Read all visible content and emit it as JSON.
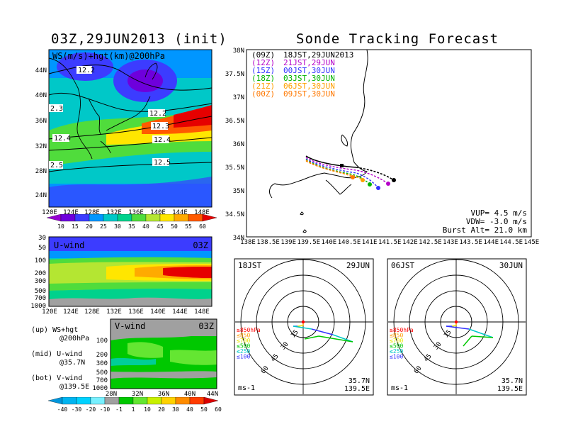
{
  "left": {
    "title": "03Z,29JUN2013 (init)",
    "map": {
      "label": "WS(m/s)+hgt(km)@200hPa",
      "lat_ticks": [
        "44N",
        "40N",
        "36N",
        "32N",
        "28N",
        "24N"
      ],
      "lon_ticks": [
        "120E",
        "124E",
        "128E",
        "132E",
        "136E",
        "140E",
        "144E",
        "148E"
      ],
      "contour_labels": [
        "12.2",
        "2.3",
        "12.2",
        "12.3",
        "12.4",
        "12.4",
        "2.5",
        "12.5"
      ]
    },
    "ws_colorbar": {
      "labels": [
        "10",
        "15",
        "20",
        "25",
        "30",
        "35",
        "40",
        "45",
        "50",
        "55",
        "60"
      ]
    },
    "uwind": {
      "label": "U-wind",
      "time": "03Z",
      "p_ticks": [
        "30",
        "50",
        "100",
        "200",
        "300",
        "500",
        "700",
        "1000"
      ],
      "lon_ticks": [
        "120E",
        "124E",
        "128E",
        "132E",
        "136E",
        "140E",
        "144E",
        "148E"
      ]
    },
    "vwind": {
      "label": "V-wind",
      "time": "03Z",
      "p_ticks": [
        "100",
        "200",
        "300",
        "500",
        "700",
        "1000"
      ],
      "lat_ticks": [
        "28N",
        "32N",
        "36N",
        "40N",
        "44N"
      ]
    },
    "legend_notes": [
      {
        "line1": "(up) WS+hgt",
        "line2": "@200hPa"
      },
      {
        "line1": "(mid) U-wind",
        "line2": "@35.7N"
      },
      {
        "line1": "(bot) V-wind",
        "line2": "@139.5E"
      }
    ],
    "wind_colorbar": {
      "labels": [
        "-40",
        "-30",
        "-20",
        "-10",
        "-1",
        "1",
        "10",
        "20",
        "30",
        "40",
        "50",
        "60"
      ]
    }
  },
  "right": {
    "title": "Sonde Tracking Forecast",
    "track_map": {
      "lat_ticks": [
        "38N",
        "37.5N",
        "37N",
        "36.5N",
        "36N",
        "35.5N",
        "35N",
        "34.5N",
        "34N"
      ],
      "lon_ticks": [
        "138E",
        "138.5E",
        "139E",
        "139.5E",
        "140E",
        "140.5E",
        "141E",
        "141.5E",
        "142E",
        "142.5E",
        "143E",
        "143.5E",
        "144E",
        "144.5E",
        "145E"
      ],
      "runs": [
        {
          "run": "(09Z)",
          "label": "18JST,29JUN2013",
          "color": "#000000"
        },
        {
          "run": "(12Z)",
          "label": "21JST,29JUN",
          "color": "#b400c8"
        },
        {
          "run": "(15Z)",
          "label": "00JST,30JUN",
          "color": "#3232ff"
        },
        {
          "run": "(18Z)",
          "label": "03JST,30JUN",
          "color": "#00b400"
        },
        {
          "run": "(21Z)",
          "label": "06JST,30JUN",
          "color": "#ffa000"
        },
        {
          "run": "(00Z)",
          "label": "09JST,30JUN",
          "color": "#ff7800"
        }
      ],
      "params": [
        "VUP= 4.5 m/s",
        "VDW= -3.0 m/s",
        "Burst Alt= 21.0 km"
      ]
    },
    "hodographs": [
      {
        "time": "18JST",
        "date": "29JUN",
        "loc_lat": "35.7N",
        "loc_lon": "139.5E",
        "unit": "ms-1",
        "ring_labels": [
          "15",
          "30",
          "45",
          "60"
        ],
        "levels": [
          {
            "text": "≥850hPa",
            "color": "#ff0000"
          },
          {
            "text": "≤850",
            "color": "#ff9a00"
          },
          {
            "text": "≤700",
            "color": "#e6e600"
          },
          {
            "text": "≤500",
            "color": "#00c800"
          },
          {
            "text": "≤250",
            "color": "#00c8c8"
          },
          {
            "text": "≤100",
            "color": "#3232ff"
          }
        ]
      },
      {
        "time": "06JST",
        "date": "30JUN",
        "loc_lat": "35.7N",
        "loc_lon": "139.5E",
        "unit": "ms-1",
        "ring_labels": [
          "15",
          "30",
          "45",
          "60"
        ],
        "levels": [
          {
            "text": "≥850hPa",
            "color": "#ff0000"
          },
          {
            "text": "≤850",
            "color": "#ff9a00"
          },
          {
            "text": "≤700",
            "color": "#e6e600"
          },
          {
            "text": "≤500",
            "color": "#00c800"
          },
          {
            "text": "≤250",
            "color": "#00c8c8"
          },
          {
            "text": "≤100",
            "color": "#3232ff"
          }
        ]
      }
    ]
  },
  "colors": {
    "ws_scale": [
      "#9600d2",
      "#6e00dc",
      "#3c3cff",
      "#0096ff",
      "#00c8c8",
      "#00d28c",
      "#50dc3c",
      "#b4e632",
      "#ffe600",
      "#ffaa00",
      "#ff5a00",
      "#e60000"
    ],
    "wind_scale": [
      "#0096dc",
      "#00b4f0",
      "#00d2ff",
      "#78f0ff",
      "#a0a0a0",
      "#00c800",
      "#64e632",
      "#c8f000",
      "#ffd200",
      "#ff8c00",
      "#ff3c00",
      "#dc0000"
    ]
  },
  "chart_data": [
    {
      "type": "heatmap",
      "title": "WS(m/s)+hgt(km)@200hPa",
      "x_range": [
        "120E",
        "150E"
      ],
      "y_range": [
        "22N",
        "47N"
      ],
      "contours_km": [
        12.2,
        12.3,
        12.4,
        12.5
      ]
    },
    {
      "type": "heatmap",
      "title": "U-wind",
      "x_range": [
        "120E",
        "150E"
      ],
      "y_range_hPa": [
        1000,
        30
      ]
    },
    {
      "type": "heatmap",
      "title": "V-wind",
      "x_range": [
        "28N",
        "44N"
      ],
      "y_range_hPa": [
        1000,
        100
      ]
    },
    {
      "type": "line",
      "title": "Sonde Tracking Forecast",
      "xlim": [
        138,
        145
      ],
      "ylim": [
        34,
        38
      ],
      "series": [
        {
          "name": "18JST,29JUN2013",
          "end_lon": 141.7,
          "end_lat": 35.18
        },
        {
          "name": "21JST,29JUN",
          "end_lon": 141.5,
          "end_lat": 35.1
        },
        {
          "name": "00JST,30JUN",
          "end_lon": 141.2,
          "end_lat": 35.03
        },
        {
          "name": "03JST,30JUN",
          "end_lon": 141.0,
          "end_lat": 35.1
        },
        {
          "name": "06JST,30JUN",
          "end_lon": 140.85,
          "end_lat": 35.18
        },
        {
          "name": "09JST,30JUN",
          "end_lon": 140.55,
          "end_lat": 35.25
        }
      ]
    }
  ]
}
